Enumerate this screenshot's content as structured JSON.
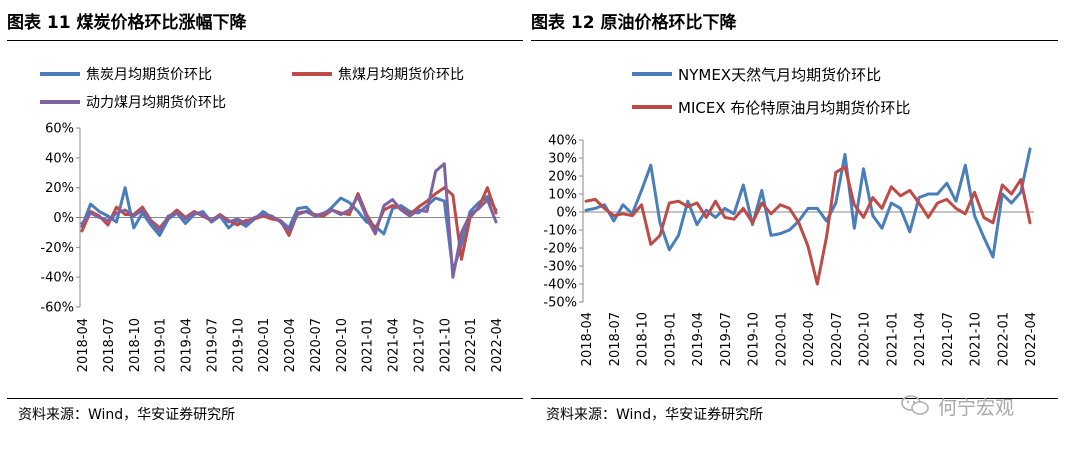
{
  "figures": [
    {
      "title": "图表 11  煤炭价格环比涨幅下降",
      "source": "资料来源：Wind，华安证券研究所"
    },
    {
      "title": "图表 12  原油价格环比下降",
      "source": "资料来源：Wind，华安证券研究所"
    }
  ],
  "watermark": "何宁宏观",
  "colors": {
    "blue": "#4a7ebb",
    "red": "#be4b48",
    "purple": "#7f63a1"
  },
  "chart_data": [
    {
      "type": "line",
      "title": "煤炭价格环比涨幅下降",
      "x_tick_labels": [
        "2018-04",
        "2018-07",
        "2018-10",
        "2019-01",
        "2019-04",
        "2019-07",
        "2019-10",
        "2020-01",
        "2020-04",
        "2020-07",
        "2020-10",
        "2021-01",
        "2021-04",
        "2021-07",
        "2021-10",
        "2022-01",
        "2022-04"
      ],
      "y_tick_labels": [
        "60%",
        "40%",
        "20%",
        "0%",
        "-20%",
        "-40%",
        "-60%"
      ],
      "ylim": [
        -60,
        60
      ],
      "y_unit": "%",
      "x_points": 49,
      "legend": [
        "焦炭月均期货价环比",
        "焦煤月均期货价环比",
        "动力煤月均期货价环比"
      ],
      "series": [
        {
          "name": "焦炭月均期货价环比",
          "color_key": "blue",
          "values": [
            -6,
            9,
            4,
            1,
            -3,
            20,
            -7,
            3,
            -5,
            -12,
            -1,
            3,
            -4,
            2,
            4,
            -3,
            1,
            -7,
            -2,
            -6,
            -1,
            4,
            0,
            -2,
            -7,
            6,
            7,
            1,
            2,
            7,
            13,
            10,
            4,
            -3,
            -6,
            -11,
            6,
            8,
            4,
            3,
            8,
            13,
            11,
            -36,
            -18,
            4,
            10,
            14,
            5
          ]
        },
        {
          "name": "焦煤月均期货价环比",
          "color_key": "red",
          "values": [
            -9,
            4,
            1,
            -5,
            7,
            2,
            2,
            7,
            -2,
            -7,
            0,
            5,
            0,
            4,
            1,
            -2,
            2,
            -2,
            -5,
            -2,
            -1,
            1,
            -1,
            -2,
            -12,
            3,
            4,
            2,
            1,
            5,
            3,
            2,
            16,
            2,
            -8,
            5,
            8,
            6,
            2,
            7,
            11,
            16,
            20,
            15,
            -28,
            0,
            7,
            20,
            3
          ]
        },
        {
          "name": "动力煤月均期货价环比",
          "color_key": "purple",
          "values": [
            -4,
            3,
            0,
            -2,
            3,
            5,
            1,
            5,
            -3,
            -9,
            1,
            3,
            -1,
            3,
            2,
            -2,
            1,
            -3,
            -1,
            -4,
            0,
            2,
            1,
            -3,
            -9,
            2,
            4,
            1,
            3,
            5,
            2,
            5,
            14,
            0,
            -11,
            8,
            12,
            5,
            1,
            5,
            4,
            31,
            36,
            -40,
            -10,
            2,
            6,
            12,
            -3
          ]
        }
      ]
    },
    {
      "type": "line",
      "title": "原油价格环比下降",
      "x_tick_labels": [
        "2018-04",
        "2018-07",
        "2018-10",
        "2019-01",
        "2019-04",
        "2019-07",
        "2019-10",
        "2020-01",
        "2020-04",
        "2020-07",
        "2020-10",
        "2021-01",
        "2021-04",
        "2021-07",
        "2021-10",
        "2022-01",
        "2022-04"
      ],
      "y_tick_labels": [
        "40%",
        "30%",
        "20%",
        "10%",
        "0%",
        "-10%",
        "-20%",
        "-30%",
        "-40%",
        "-50%"
      ],
      "ylim": [
        -50,
        40
      ],
      "y_unit": "%",
      "x_points": 49,
      "legend": [
        "NYMEX天然气月均期货价环比",
        "MICEX 布伦特原油月均期货价环比"
      ],
      "series": [
        {
          "name": "NYMEX天然气月均期货价环比",
          "color_key": "blue",
          "values": [
            1,
            2,
            4,
            -5,
            4,
            -1,
            12,
            26,
            -6,
            -21,
            -13,
            6,
            -7,
            1,
            -3,
            2,
            -1,
            15,
            -7,
            12,
            -13,
            -12,
            -10,
            -5,
            2,
            2,
            -5,
            5,
            32,
            -9,
            24,
            -2,
            -9,
            5,
            2,
            -11,
            8,
            10,
            10,
            16,
            6,
            26,
            -2,
            -14,
            -25,
            10,
            5,
            11,
            35
          ]
        },
        {
          "name": "MICEX 布伦特原油月均期货价环比",
          "color_key": "red",
          "values": [
            6,
            7,
            2,
            -2,
            -1,
            -2,
            4,
            -18,
            -13,
            5,
            6,
            3,
            5,
            -3,
            6,
            -3,
            -4,
            2,
            -6,
            5,
            -1,
            4,
            2,
            -6,
            -19,
            -40,
            -14,
            22,
            25,
            4,
            -3,
            8,
            2,
            14,
            9,
            12,
            5,
            -3,
            5,
            7,
            2,
            -1,
            11,
            -3,
            -6,
            15,
            10,
            18,
            -6
          ]
        }
      ]
    }
  ]
}
